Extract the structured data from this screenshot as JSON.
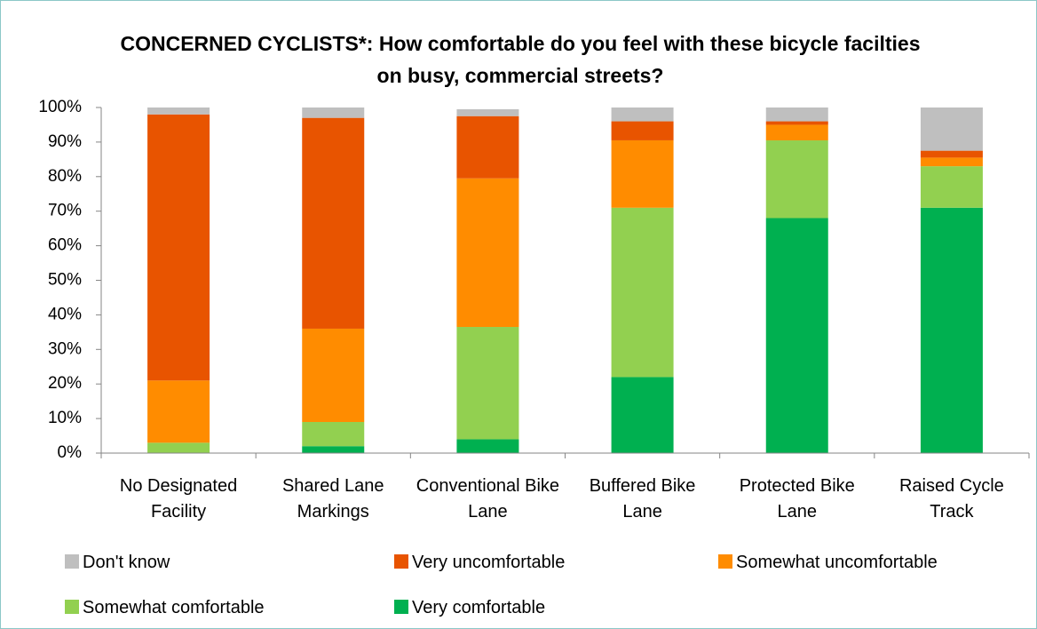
{
  "chart_data": {
    "type": "stacked_bar",
    "title": "CONCERNED CYCLISTS*: How comfortable do you feel with these bicycle facilties on busy, commercial streets?",
    "categories": [
      "No Designated Facility",
      "Shared Lane Markings",
      "Conventional Bike Lane",
      "Buffered Bike Lane",
      "Protected Bike Lane",
      "Raised Cycle Track"
    ],
    "series": [
      {
        "name": "Very comfortable",
        "color": "#00b050",
        "values": [
          0,
          2,
          4,
          22,
          68,
          71
        ]
      },
      {
        "name": "Somewhat comfortable",
        "color": "#92d050",
        "values": [
          3,
          7,
          32.5,
          49,
          22.5,
          12
        ]
      },
      {
        "name": "Somewhat uncomfortable",
        "color": "#ff8c00",
        "values": [
          18,
          27,
          43,
          19.5,
          4.5,
          2.5
        ]
      },
      {
        "name": "Very uncomfortable",
        "color": "#e85400",
        "values": [
          77,
          61,
          18,
          5.5,
          1,
          2
        ]
      },
      {
        "name": "Don't know",
        "color": "#bfbfbf",
        "values": [
          2,
          3,
          2,
          4,
          4,
          12.5
        ]
      }
    ],
    "legend_order": [
      4,
      3,
      2,
      1,
      0
    ],
    "ylim": [
      0,
      100
    ],
    "yticks": [
      {
        "value": 0,
        "label": "0%"
      },
      {
        "value": 10,
        "label": "10%"
      },
      {
        "value": 20,
        "label": "20%"
      },
      {
        "value": 30,
        "label": "30%"
      },
      {
        "value": 40,
        "label": "40%"
      },
      {
        "value": 50,
        "label": "50%"
      },
      {
        "value": 60,
        "label": "60%"
      },
      {
        "value": 70,
        "label": "70%"
      },
      {
        "value": 80,
        "label": "80%"
      },
      {
        "value": 90,
        "label": "90%"
      },
      {
        "value": 100,
        "label": "100%"
      }
    ],
    "grid": false,
    "legend": "bottom"
  }
}
